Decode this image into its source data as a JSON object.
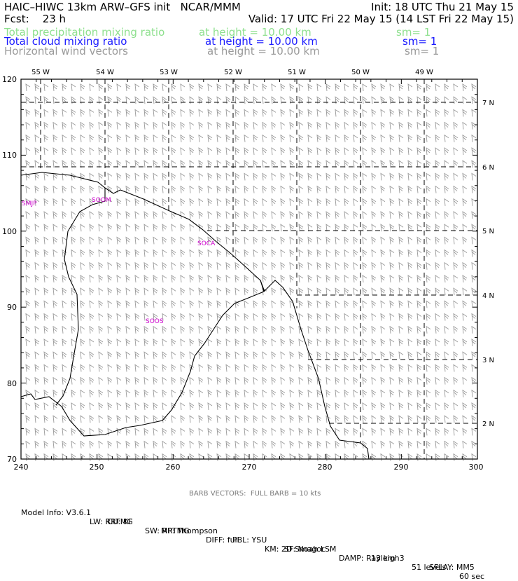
{
  "header": {
    "line1_left": "HAIC–HIWC 13km ARW–GFS init   NCAR/MMM",
    "line1_right": "Init: 18 UTC Thu 21 May 15",
    "line2_left": "Fcst:    23 h",
    "line2_right": "Valid: 17 UTC Fri 22 May 15 (14 LST Fri 22 May 15)"
  },
  "fields": [
    {
      "name": "Total precipitation mixing ratio",
      "height": "at height = 10.00 km",
      "sm": "sm= 1",
      "color": "#8ee08e"
    },
    {
      "name": "Total cloud mixing ratio",
      "height": "at height = 10.00 km",
      "sm": "sm= 1",
      "color": "#1a1aff"
    },
    {
      "name": "Horizontal wind vectors",
      "height": "at height = 10.00 km",
      "sm": "sm= 1",
      "color": "#9a9a9a"
    }
  ],
  "map": {
    "lon_labels": [
      "55 W",
      "54 W",
      "53 W",
      "52 W",
      "51 W",
      "50 W",
      "49 W"
    ],
    "lat_labels": [
      "7 N",
      "6 N",
      "5 N",
      "4 N",
      "3 N",
      "2 N"
    ],
    "x_ticks": [
      "240",
      "250",
      "260",
      "270",
      "280",
      "290",
      "300"
    ],
    "y_ticks": [
      "120",
      "110",
      "100",
      "90",
      "80",
      "70"
    ],
    "stations": [
      "SMJP",
      "SOOM",
      "SOCA",
      "SOOS"
    ],
    "station_color": "#cc00cc",
    "barb_color": "#9a9a9a"
  },
  "footer": {
    "barb_note": "BARB VECTORS:  FULL BARB = 10 kts",
    "row1": [
      "Model Info: V3.6.1",
      "CU: KF",
      "MP: Thompson",
      "PBL: YSU",
      "SF: Noah LSM",
      "13 km",
      "51 levels",
      "60 sec"
    ],
    "row2": [
      "LW: RRTMG",
      "SW: RRTMG",
      "DIFF: full",
      "KM: 2D Smagor",
      "DAMP: Rayleigh3",
      "SFLAY: MM5"
    ]
  }
}
